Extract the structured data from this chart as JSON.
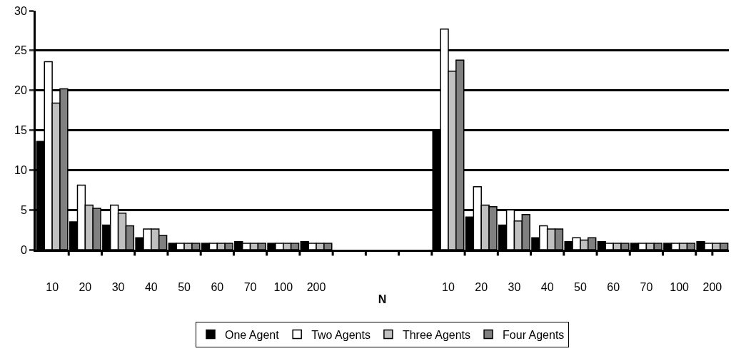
{
  "chart_data": {
    "type": "bar",
    "xlabel": "N",
    "categories": [
      "10",
      "20",
      "30",
      "40",
      "50",
      "60",
      "70",
      "100",
      "200",
      null,
      null,
      null,
      "10",
      "20",
      "30",
      "40",
      "50",
      "60",
      "70",
      "100",
      "200"
    ],
    "series": [
      {
        "name": "One Agent",
        "color": "#000000",
        "values": [
          13.6,
          3.5,
          3.1,
          1.5,
          0.8,
          0.8,
          1.0,
          0.8,
          1.0,
          null,
          null,
          null,
          15.0,
          4.1,
          3.1,
          1.5,
          1.0,
          1.0,
          0.8,
          0.8,
          1.0
        ]
      },
      {
        "name": "Two Agents",
        "color": "#ffffff",
        "values": [
          23.6,
          8.1,
          5.6,
          2.6,
          0.8,
          0.8,
          0.8,
          0.8,
          0.8,
          null,
          null,
          null,
          27.7,
          7.9,
          5.0,
          3.0,
          1.5,
          0.8,
          0.8,
          0.8,
          0.8
        ]
      },
      {
        "name": "Three Agents",
        "color": "#c0c0c0",
        "values": [
          18.4,
          5.6,
          4.6,
          2.6,
          0.8,
          0.8,
          0.8,
          0.8,
          0.8,
          null,
          null,
          null,
          22.4,
          5.6,
          3.6,
          2.6,
          1.2,
          0.8,
          0.8,
          0.8,
          0.8
        ]
      },
      {
        "name": "Four Agents",
        "color": "#808080",
        "values": [
          20.2,
          5.2,
          3.0,
          1.8,
          0.8,
          0.8,
          0.8,
          0.8,
          0.8,
          null,
          null,
          null,
          23.8,
          5.4,
          4.4,
          2.6,
          1.5,
          0.8,
          0.8,
          0.8,
          0.8
        ]
      }
    ],
    "ylim": [
      0,
      30
    ],
    "yticks": [
      0,
      5,
      10,
      15,
      20,
      25,
      30
    ],
    "grid": "y",
    "legend": "bottom"
  }
}
